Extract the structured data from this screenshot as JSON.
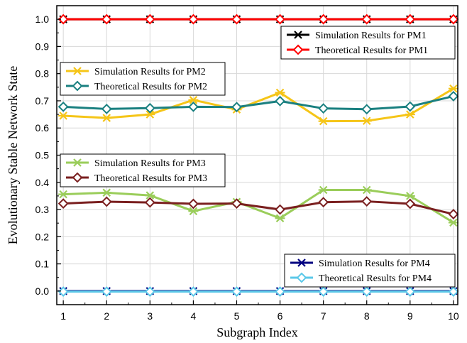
{
  "chart_data": {
    "type": "line",
    "xlabel": "Subgraph Index",
    "ylabel": "Evolutionary Stable Network State",
    "x": [
      1,
      2,
      3,
      4,
      5,
      6,
      7,
      8,
      9,
      10
    ],
    "xlim": [
      0.85,
      10.1
    ],
    "ylim": [
      -0.05,
      1.05
    ],
    "xticks": [
      "1",
      "2",
      "3",
      "4",
      "5",
      "6",
      "7",
      "8",
      "9",
      "10"
    ],
    "yticks": [
      "0.0",
      "0.1",
      "0.2",
      "0.3",
      "0.4",
      "0.5",
      "0.6",
      "0.7",
      "0.8",
      "0.9",
      "1.0"
    ],
    "grid": true,
    "series": [
      {
        "name": "Simulation Results for PM1",
        "color": "#000000",
        "marker": "asterisk",
        "values": [
          1.0,
          1.0,
          1.0,
          1.0,
          1.0,
          1.0,
          1.0,
          1.0,
          1.0,
          1.0
        ]
      },
      {
        "name": "Theoretical Results for PM1",
        "color": "#ff0000",
        "marker": "diamond",
        "values": [
          1.0,
          1.0,
          1.0,
          1.0,
          1.0,
          1.0,
          1.0,
          1.0,
          1.0,
          1.0
        ]
      },
      {
        "name": "Simulation Results for PM2",
        "color": "#f5c518",
        "marker": "asterisk",
        "values": [
          0.645,
          0.637,
          0.65,
          0.703,
          0.668,
          0.73,
          0.625,
          0.626,
          0.65,
          0.745
        ]
      },
      {
        "name": "Theoretical Results for PM2",
        "color": "#1a8080",
        "marker": "diamond",
        "values": [
          0.678,
          0.67,
          0.673,
          0.678,
          0.677,
          0.699,
          0.672,
          0.669,
          0.679,
          0.717
        ]
      },
      {
        "name": "Simulation Results for PM3",
        "color": "#9acd5a",
        "marker": "asterisk",
        "values": [
          0.356,
          0.362,
          0.352,
          0.294,
          0.328,
          0.268,
          0.372,
          0.372,
          0.35,
          0.252
        ]
      },
      {
        "name": "Theoretical Results for PM3",
        "color": "#7a1f1f",
        "marker": "diamond",
        "values": [
          0.322,
          0.329,
          0.326,
          0.321,
          0.322,
          0.3,
          0.327,
          0.33,
          0.321,
          0.283
        ]
      },
      {
        "name": "Simulation Results for PM4",
        "color": "#000080",
        "marker": "asterisk",
        "values": [
          0.0,
          0.0,
          0.0,
          0.0,
          0.0,
          0.0,
          0.0,
          0.0,
          0.0,
          0.0
        ]
      },
      {
        "name": "Theoretical Results for PM4",
        "color": "#5bc8e8",
        "marker": "diamond",
        "values": [
          -0.002,
          -0.002,
          -0.002,
          -0.002,
          -0.002,
          -0.002,
          -0.002,
          -0.002,
          -0.002,
          -0.002
        ]
      }
    ],
    "legends": [
      {
        "placement": "top-right",
        "series": [
          0,
          1
        ]
      },
      {
        "placement": "upper-left",
        "series": [
          2,
          3
        ]
      },
      {
        "placement": "middle-left",
        "series": [
          4,
          5
        ]
      },
      {
        "placement": "bottom-right",
        "series": [
          6,
          7
        ]
      }
    ]
  }
}
